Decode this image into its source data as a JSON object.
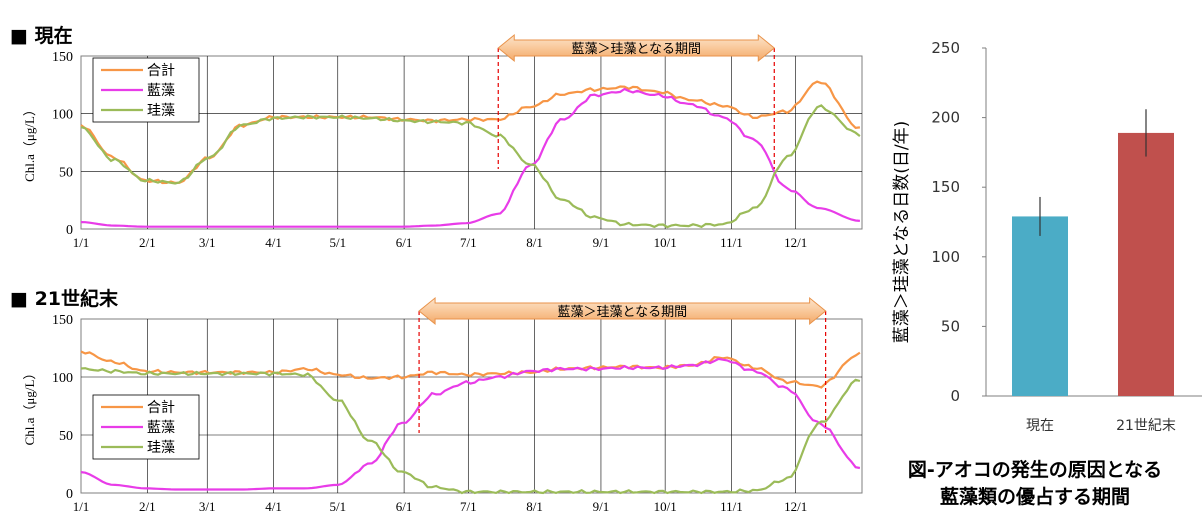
{
  "chart_data": [
    {
      "type": "line",
      "title": "■ 現在",
      "ylabel": "Chl.a（μg/L）",
      "ylim": [
        0,
        150
      ],
      "yticks": [
        0,
        50,
        100,
        150
      ],
      "xtick_labels": [
        "1/1",
        "2/1",
        "3/1",
        "4/1",
        "5/1",
        "6/1",
        "7/1",
        "8/1",
        "9/1",
        "10/1",
        "11/1",
        "12/1"
      ],
      "legend": [
        "合計",
        "藍藻",
        "珪藻"
      ],
      "legend_position": "top-left",
      "annotation": "藍藻＞珪藻となる期間",
      "period_start": "7/15",
      "period_end": "11/21",
      "grid": true,
      "x_days": [
        0,
        15,
        30,
        45,
        60,
        75,
        90,
        105,
        120,
        135,
        150,
        165,
        180,
        195,
        210,
        225,
        240,
        255,
        270,
        285,
        300,
        315,
        330,
        345,
        364
      ],
      "series": [
        {
          "name": "合計",
          "values": [
            90,
            62,
            42,
            40,
            62,
            90,
            97,
            97,
            97,
            97,
            95,
            94,
            95,
            95,
            106,
            117,
            121,
            123,
            119,
            112,
            107,
            97,
            102,
            128,
            87
          ]
        },
        {
          "name": "藍藻",
          "values": [
            6,
            3,
            2,
            2,
            2,
            2,
            2,
            2,
            2,
            2,
            2,
            3,
            5,
            13,
            55,
            95,
            116,
            120,
            116,
            108,
            97,
            77,
            35,
            18,
            7
          ]
        },
        {
          "name": "珪藻",
          "values": [
            88,
            60,
            42,
            40,
            62,
            90,
            96,
            97,
            97,
            96,
            94,
            93,
            92,
            81,
            56,
            25,
            10,
            4,
            3,
            3,
            4,
            18,
            62,
            106,
            82
          ]
        }
      ]
    },
    {
      "type": "line",
      "title": "■ 21世紀末",
      "ylabel": "Chl.a（μg/L）",
      "ylim": [
        0,
        150
      ],
      "yticks": [
        0,
        50,
        100,
        150
      ],
      "xtick_labels": [
        "1/1",
        "2/1",
        "3/1",
        "4/1",
        "5/1",
        "6/1",
        "7/1",
        "8/1",
        "9/1",
        "10/1",
        "11/1",
        "12/1"
      ],
      "legend": [
        "合計",
        "藍藻",
        "珪藻"
      ],
      "legend_position": "center-left",
      "annotation": "藍藻＞珪藻となる期間",
      "period_start": "6/8",
      "period_end": "12/15",
      "grid": true,
      "x_days": [
        0,
        15,
        30,
        45,
        60,
        75,
        90,
        105,
        120,
        135,
        150,
        165,
        180,
        195,
        210,
        225,
        240,
        255,
        270,
        285,
        300,
        315,
        330,
        345,
        364
      ],
      "series": [
        {
          "name": "合計",
          "values": [
            122,
            113,
            105,
            104,
            104,
            104,
            104,
            107,
            102,
            99,
            100,
            104,
            102,
            103,
            104,
            107,
            108,
            109,
            108,
            110,
            117,
            108,
            96,
            92,
            120
          ]
        },
        {
          "name": "藍藻",
          "values": [
            18,
            7,
            4,
            3,
            3,
            3,
            4,
            4,
            7,
            25,
            60,
            85,
            95,
            100,
            105,
            107,
            107,
            108,
            108,
            110,
            115,
            105,
            90,
            60,
            22
          ]
        },
        {
          "name": "珪藻",
          "values": [
            107,
            105,
            103,
            103,
            103,
            103,
            103,
            102,
            80,
            45,
            18,
            5,
            1,
            1,
            1,
            1,
            1,
            1,
            1,
            1,
            1,
            2,
            12,
            60,
            98
          ]
        }
      ]
    },
    {
      "type": "bar",
      "ylabel": "藍藻＞珪藻となる日数(日/年)",
      "ylim": [
        0,
        250
      ],
      "yticks": [
        0,
        50,
        100,
        150,
        200,
        250
      ],
      "categories": [
        "現在",
        "21世紀末"
      ],
      "values": [
        129,
        189
      ],
      "error": [
        14,
        17
      ],
      "colors": [
        "#4BACC6",
        "#C0504D"
      ]
    }
  ],
  "caption_line1": "図-アオコの発生の原因となる",
  "caption_line2": "藍藻類の優占する期間",
  "colors": {
    "total": "#F79646",
    "blue_green": "#E83CE8",
    "diatom": "#9BBB59",
    "period_line": "#E60000"
  }
}
